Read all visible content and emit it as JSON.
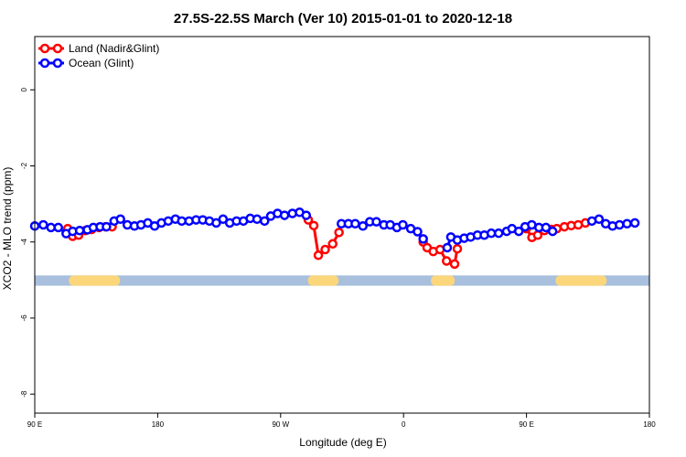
{
  "chart_data": {
    "type": "line",
    "title": "27.5S-22.5S March (Ver 10)   2015-01-01 to 2020-12-18",
    "xlabel": "Longitude (deg E)",
    "ylabel": "XCO2 - MLO trend (ppm)",
    "xlim": [
      90,
      450
    ],
    "ylim": [
      -8.5,
      1.4
    ],
    "x_ticks": [
      {
        "value": 90,
        "label": "90 E"
      },
      {
        "value": 162,
        "label": "180"
      },
      {
        "value": 234,
        "label": "90 W"
      },
      {
        "value": 306,
        "label": "0"
      },
      {
        "value": 378,
        "label": "90 E"
      },
      {
        "value": 450,
        "label": "180"
      }
    ],
    "y_ticks": [
      {
        "value": 0,
        "label": "0"
      },
      {
        "value": -2,
        "label": "-2"
      },
      {
        "value": -4,
        "label": "-4"
      },
      {
        "value": -6,
        "label": "-6"
      },
      {
        "value": -8,
        "label": "-8"
      }
    ],
    "legend": {
      "position": "top-left"
    },
    "series": [
      {
        "name": "Land (Nadir&Glint)",
        "color": "#ff0000",
        "segments": [
          [
            [
              109.3,
              -3.65
            ],
            [
              112.2,
              -3.85
            ],
            [
              115.7,
              -3.82
            ],
            [
              119.6,
              -3.7
            ],
            [
              123.3,
              -3.67
            ],
            [
              127.6,
              -3.62
            ],
            [
              131.5,
              -3.6
            ],
            [
              135.3,
              -3.6
            ]
          ],
          [
            [
              250.2,
              -3.42
            ],
            [
              253.4,
              -3.57
            ],
            [
              256.1,
              -4.35
            ],
            [
              260.1,
              -4.2
            ],
            [
              264.5,
              -4.05
            ],
            [
              268.2,
              -3.75
            ]
          ],
          [
            [
              317.5,
              -4.0
            ],
            [
              319.8,
              -4.15
            ],
            [
              323.4,
              -4.25
            ],
            [
              327.4,
              -4.2
            ],
            [
              331.2,
              -4.5
            ],
            [
              335.9,
              -4.58
            ],
            [
              337.5,
              -4.18
            ]
          ],
          [
            [
              377.9,
              -3.65
            ],
            [
              381.2,
              -3.88
            ],
            [
              384.6,
              -3.82
            ],
            [
              388.5,
              -3.7
            ],
            [
              392.5,
              -3.67
            ],
            [
              395.8,
              -3.65
            ],
            [
              400.2,
              -3.6
            ],
            [
              404.2,
              -3.57
            ],
            [
              408.3,
              -3.55
            ],
            [
              412.5,
              -3.5
            ]
          ]
        ]
      },
      {
        "name": "Ocean (Glint)",
        "color": "#0000ff",
        "segments": [
          [
            [
              90.0,
              -3.58
            ],
            [
              95.0,
              -3.55
            ],
            [
              99.5,
              -3.62
            ],
            [
              103.8,
              -3.62
            ],
            [
              108.4,
              -3.78
            ],
            [
              112.2,
              -3.72
            ],
            [
              116.3,
              -3.7
            ],
            [
              120.8,
              -3.68
            ],
            [
              124.3,
              -3.62
            ],
            [
              128.3,
              -3.6
            ],
            [
              132.0,
              -3.6
            ],
            [
              136.5,
              -3.45
            ],
            [
              140.2,
              -3.4
            ],
            [
              144.2,
              -3.55
            ],
            [
              148.4,
              -3.58
            ],
            [
              152.2,
              -3.55
            ],
            [
              156.2,
              -3.5
            ],
            [
              160.2,
              -3.58
            ],
            [
              164.2,
              -3.5
            ],
            [
              168.2,
              -3.45
            ],
            [
              172.4,
              -3.4
            ],
            [
              176.1,
              -3.45
            ],
            [
              180.4,
              -3.45
            ],
            [
              184.5,
              -3.42
            ],
            [
              188.4,
              -3.42
            ],
            [
              192.3,
              -3.45
            ],
            [
              196.3,
              -3.5
            ],
            [
              200.3,
              -3.4
            ],
            [
              204.2,
              -3.5
            ],
            [
              208.2,
              -3.45
            ],
            [
              212.2,
              -3.45
            ],
            [
              216.2,
              -3.38
            ],
            [
              220.2,
              -3.4
            ],
            [
              224.6,
              -3.45
            ],
            [
              228.2,
              -3.32
            ],
            [
              232.2,
              -3.25
            ],
            [
              236.3,
              -3.3
            ],
            [
              240.9,
              -3.25
            ],
            [
              245.1,
              -3.22
            ],
            [
              249.0,
              -3.3
            ]
          ],
          [
            [
              269.6,
              -3.52
            ],
            [
              273.7,
              -3.52
            ],
            [
              277.7,
              -3.52
            ],
            [
              282.2,
              -3.58
            ],
            [
              286.2,
              -3.47
            ],
            [
              290.1,
              -3.47
            ],
            [
              294.5,
              -3.55
            ],
            [
              298.2,
              -3.55
            ],
            [
              302.1,
              -3.62
            ],
            [
              305.6,
              -3.55
            ],
            [
              310.2,
              -3.65
            ],
            [
              314.2,
              -3.73
            ],
            [
              317.5,
              -3.92
            ]
          ],
          [
            [
              331.6,
              -4.15
            ],
            [
              333.7,
              -3.87
            ],
            [
              337.5,
              -3.95
            ],
            [
              341.5,
              -3.9
            ],
            [
              345.3,
              -3.87
            ],
            [
              349.3,
              -3.82
            ],
            [
              353.3,
              -3.82
            ],
            [
              357.4,
              -3.77
            ],
            [
              361.7,
              -3.77
            ],
            [
              366.4,
              -3.72
            ],
            [
              369.5,
              -3.65
            ],
            [
              373.5,
              -3.72
            ],
            [
              377.2,
              -3.6
            ],
            [
              381.1,
              -3.55
            ],
            [
              385.3,
              -3.62
            ],
            [
              389.4,
              -3.62
            ],
            [
              393.3,
              -3.72
            ]
          ],
          [
            [
              416.3,
              -3.45
            ],
            [
              420.5,
              -3.4
            ],
            [
              424.4,
              -3.52
            ],
            [
              428.4,
              -3.58
            ],
            [
              432.5,
              -3.55
            ],
            [
              436.9,
              -3.52
            ],
            [
              441.5,
              -3.5
            ]
          ]
        ]
      }
    ],
    "surface_band": {
      "y_range": [
        -5.15,
        -4.88
      ],
      "ocean_color": "#a8bfdd",
      "land_color": "#fbd67a",
      "land_x_ranges": [
        [
          110,
          140
        ],
        [
          250,
          268
        ],
        [
          322,
          336
        ],
        [
          395,
          425
        ]
      ]
    }
  }
}
